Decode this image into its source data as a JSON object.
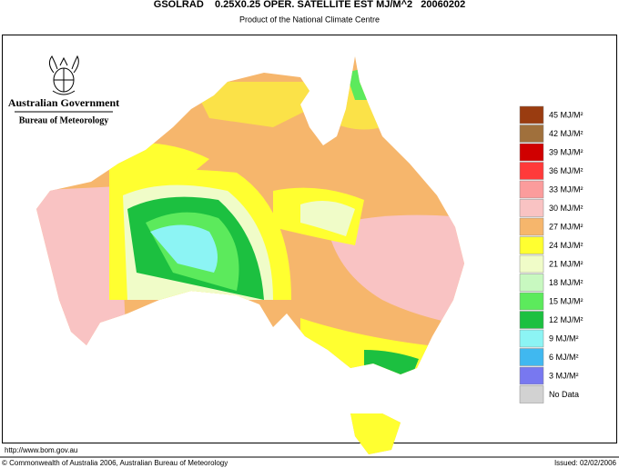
{
  "header": {
    "title": "GSOLRAD    0.25X0.25 OPER. SATELLITE EST MJ/M^2   20060202",
    "subtitle": "Product of the National Climate Centre"
  },
  "logo": {
    "government": "Australian Government",
    "bureau": "Bureau of Meteorology"
  },
  "legend": [
    {
      "label": "45 MJ/M²",
      "color": "#9a3c10"
    },
    {
      "label": "42 MJ/M²",
      "color": "#a0703c"
    },
    {
      "label": "39 MJ/M²",
      "color": "#d00000"
    },
    {
      "label": "36 MJ/M²",
      "color": "#ff3a3a"
    },
    {
      "label": "33 MJ/M²",
      "color": "#fb9c9c"
    },
    {
      "label": "30 MJ/M²",
      "color": "#f9c3c3"
    },
    {
      "label": "27 MJ/M²",
      "color": "#f6b66c"
    },
    {
      "label": "24 MJ/M²",
      "color": "#ffff30"
    },
    {
      "label": "21 MJ/M²",
      "color": "#f0fcc8"
    },
    {
      "label": "18 MJ/M²",
      "color": "#c8f8c0"
    },
    {
      "label": "15 MJ/M²",
      "color": "#5cea5c"
    },
    {
      "label": "12 MJ/M²",
      "color": "#1cc040"
    },
    {
      "label": "9 MJ/M²",
      "color": "#8cf4f4"
    },
    {
      "label": "6 MJ/M²",
      "color": "#40b8f0"
    },
    {
      "label": "3 MJ/M²",
      "color": "#7878f0"
    },
    {
      "label": "No Data",
      "color": "#d2d2d2"
    }
  ],
  "footer": {
    "url": "http://www.bom.gov.au",
    "copyright": "© Commonwealth of Australia 2006, Australian Bureau of Meteorology",
    "issued": "Issued: 02/02/2006"
  }
}
